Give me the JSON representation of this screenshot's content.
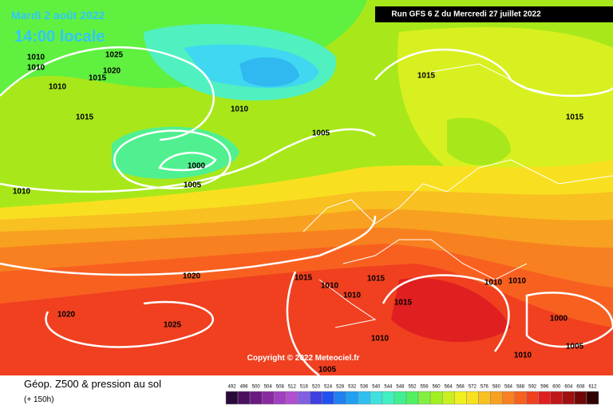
{
  "header": {
    "date": "Mardi 2 août 2022",
    "time": "14:00 locale",
    "run": "Run GFS 6 Z du Mercredi 27 juillet 2022"
  },
  "isobar_labels": [
    "1010",
    "1010",
    "1025",
    "1020",
    "1015",
    "1010",
    "1015",
    "1010",
    "1015",
    "1005",
    "1015",
    "1000",
    "1005",
    "1010",
    "1020",
    "1015",
    "1010",
    "1015",
    "1010",
    "1015",
    "1010",
    "1010",
    "1020",
    "1025",
    "1000",
    "1010",
    "1005",
    "1010",
    "1005"
  ],
  "copyright": "Copyright © 2022 Meteociel.fr",
  "footer": {
    "title": "Géop. Z500 & pression au sol",
    "subtitle": "(+ 150h)"
  },
  "scale": {
    "values": [
      492,
      496,
      500,
      504,
      508,
      512,
      516,
      520,
      524,
      528,
      532,
      536,
      540,
      544,
      548,
      552,
      556,
      560,
      564,
      568,
      572,
      576,
      580,
      584,
      588,
      592,
      596,
      600,
      604,
      608,
      612
    ],
    "colors": [
      "#2a0a3a",
      "#4b1060",
      "#6a1a80",
      "#8a2aa0",
      "#a040c0",
      "#b050d0",
      "#8060e0",
      "#4040e0",
      "#2050f0",
      "#2080f0",
      "#20a0f0",
      "#30c0f0",
      "#40e0e0",
      "#40f0c0",
      "#40f090",
      "#50f060",
      "#80f040",
      "#a0f020",
      "#c8f020",
      "#f0f020",
      "#f8e020",
      "#f8c020",
      "#f8a020",
      "#f88020",
      "#f86020",
      "#f04020",
      "#e02020",
      "#c01818",
      "#a01010",
      "#700808",
      "#300000"
    ]
  }
}
